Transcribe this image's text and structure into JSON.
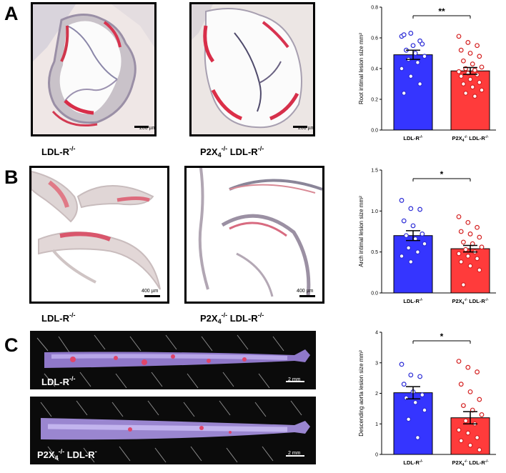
{
  "panels": {
    "A": {
      "letter": "A",
      "left_caption": {
        "main": "LDL-R",
        "sup": "-/-"
      },
      "right_caption": {
        "p2x": "P2X",
        "sub": "4",
        "sup1": "-/-",
        "main": " LDL-R",
        "sup2": "-/-"
      },
      "scale_left": "200 µm",
      "scale_right": "200 µm"
    },
    "B": {
      "letter": "B",
      "left_caption": {
        "main": "LDL-R",
        "sup": "-/-"
      },
      "right_caption": {
        "p2x": "P2X",
        "sub": "4",
        "sup1": "-/-",
        "main": " LDL-R",
        "sup2": "-/-"
      },
      "scale_left": "400 µm",
      "scale_right": "400 µm"
    },
    "C": {
      "letter": "C",
      "top_label": {
        "main": "LDL-R",
        "sup": "-/-"
      },
      "bottom_label": {
        "p2x": "P2X",
        "sub": "4",
        "sup1": "-/-",
        "main": " LDL-R",
        "sup2": "-"
      },
      "scale_top": "2 mm",
      "scale_bottom": "2 mm"
    }
  },
  "colors": {
    "ldlr_bar": "#3535ff",
    "p2x_bar": "#ff3b3b",
    "ldlr_dot": "#2b2bd6",
    "p2x_dot": "#d42020"
  },
  "chart_data": [
    {
      "type": "bar",
      "panel": "A",
      "categories": [
        "LDL-R-/-",
        "P2X4-/- LDL-R-/-"
      ],
      "ylabel": "Root intimal lesion size mm²",
      "ylim": [
        0,
        0.8
      ],
      "yticks": [
        "0.0",
        "0.2",
        "0.4",
        "0.6",
        "0.8"
      ],
      "values": [
        0.49,
        0.385
      ],
      "sem": [
        0.03,
        0.022
      ],
      "significance": "**",
      "points": [
        [
          0.61,
          0.63,
          0.58,
          0.62,
          0.55,
          0.56,
          0.52,
          0.5,
          0.48,
          0.46,
          0.44,
          0.4,
          0.35,
          0.3,
          0.24
        ],
        [
          0.61,
          0.57,
          0.55,
          0.52,
          0.5,
          0.48,
          0.45,
          0.43,
          0.41,
          0.4,
          0.39,
          0.38,
          0.37,
          0.36,
          0.35,
          0.33,
          0.31,
          0.3,
          0.28,
          0.26,
          0.24,
          0.22
        ]
      ]
    },
    {
      "type": "bar",
      "panel": "B",
      "categories": [
        "LDL-R-/-",
        "P2X4-/- LDL-R-/-"
      ],
      "ylabel": "Arch intimal lesion size mm²",
      "ylim": [
        0,
        1.5
      ],
      "yticks": [
        "0.0",
        "0.5",
        "1.0",
        "1.5"
      ],
      "values": [
        0.7,
        0.54
      ],
      "sem": [
        0.06,
        0.04
      ],
      "significance": "*",
      "points": [
        [
          1.13,
          1.03,
          1.02,
          0.88,
          0.82,
          0.72,
          0.7,
          0.66,
          0.6,
          0.55,
          0.5,
          0.45,
          0.38
        ],
        [
          0.93,
          0.86,
          0.8,
          0.75,
          0.72,
          0.68,
          0.62,
          0.6,
          0.56,
          0.53,
          0.5,
          0.48,
          0.45,
          0.42,
          0.38,
          0.33,
          0.28,
          0.1
        ]
      ]
    },
    {
      "type": "bar",
      "panel": "C",
      "categories": [
        "LDL-R-/-",
        "P2X4-/- LDL-R-/-"
      ],
      "ylabel": "Descending aorta lesion size mm²",
      "ylim": [
        0,
        4
      ],
      "yticks": [
        "0",
        "1",
        "2",
        "3",
        "4"
      ],
      "values": [
        2.02,
        1.2
      ],
      "sem": [
        0.2,
        0.2
      ],
      "significance": "*",
      "points": [
        [
          2.95,
          2.6,
          2.55,
          2.3,
          2.05,
          1.95,
          1.85,
          1.7,
          1.45,
          1.15,
          0.55
        ],
        [
          3.05,
          2.85,
          2.7,
          2.3,
          2.05,
          1.8,
          1.6,
          1.45,
          1.3,
          1.1,
          1.0,
          0.8,
          0.7,
          0.55,
          0.45,
          0.3,
          0.15
        ]
      ]
    }
  ]
}
